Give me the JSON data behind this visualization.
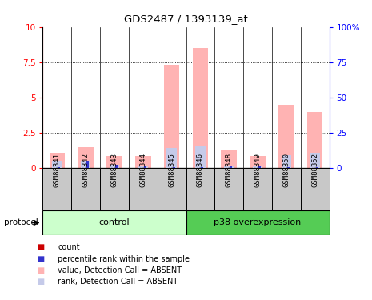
{
  "title": "GDS2487 / 1393139_at",
  "samples": [
    "GSM88341",
    "GSM88342",
    "GSM88343",
    "GSM88344",
    "GSM88345",
    "GSM88346",
    "GSM88348",
    "GSM88349",
    "GSM88350",
    "GSM88352"
  ],
  "value_absent": [
    1.1,
    1.45,
    0.85,
    0.85,
    7.3,
    8.5,
    1.3,
    0.85,
    4.5,
    3.95
  ],
  "rank_absent_pct": [
    5,
    5,
    2,
    1.5,
    14,
    16,
    1,
    1,
    9,
    10.5
  ],
  "count_val": [
    0.06,
    0.06,
    0.06,
    0.06,
    0.06,
    0.06,
    0.06,
    0.06,
    0.06,
    0.06
  ],
  "percentile_val_pct": [
    0.5,
    5,
    2,
    1.5,
    0.5,
    0.5,
    1,
    1,
    0.5,
    0.5
  ],
  "control_n": 5,
  "overexp_n": 5,
  "ylim_left": [
    0,
    10
  ],
  "ylim_right": [
    0,
    100
  ],
  "yticks_left": [
    0,
    2.5,
    5,
    7.5,
    10
  ],
  "yticks_right": [
    0,
    25,
    50,
    75,
    100
  ],
  "ytick_labels_left": [
    "0",
    "2.5",
    "5",
    "7.5",
    "10"
  ],
  "ytick_labels_right": [
    "0",
    "25",
    "50",
    "75",
    "100%"
  ],
  "color_value_absent": "#FFB3B3",
  "color_rank_absent": "#C5CAE9",
  "color_count": "#CC0000",
  "color_percentile": "#3333CC",
  "color_control_bg_light": "#CCFFCC",
  "color_overexp_bg": "#55CC55",
  "color_label_bg": "#C8C8C8",
  "protocol_text": "protocol",
  "control_label": "control",
  "overexp_label": "p38 overexpression",
  "legend_items": [
    {
      "label": "count",
      "color": "#CC0000"
    },
    {
      "label": "percentile rank within the sample",
      "color": "#3333CC"
    },
    {
      "label": "value, Detection Call = ABSENT",
      "color": "#FFB3B3"
    },
    {
      "label": "rank, Detection Call = ABSENT",
      "color": "#C5CAE9"
    }
  ]
}
